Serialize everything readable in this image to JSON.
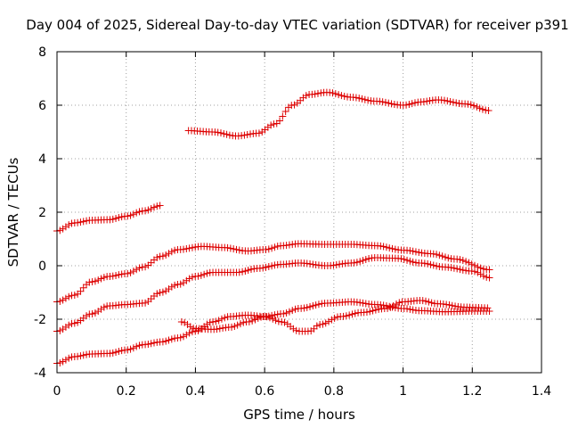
{
  "chart_data": {
    "type": "scatter",
    "title": "Day 004 of 2025, Sidereal Day-to-day VTEC variation (SDTVAR) for receiver p391",
    "xlabel": "GPS time / hours",
    "ylabel": "SDTVAR / TECUs",
    "xlim": [
      0,
      1.4
    ],
    "ylim": [
      -4,
      8
    ],
    "xticks": [
      0,
      0.2,
      0.4,
      0.6,
      0.8,
      1,
      1.2,
      1.4
    ],
    "xtick_labels": [
      "0",
      "0.2",
      "0.4",
      "0.6",
      "0.8",
      "1",
      "1.2",
      "1.4"
    ],
    "yticks": [
      -4,
      -2,
      0,
      2,
      4,
      6,
      8
    ],
    "ytick_labels": [
      "-4",
      "-2",
      "0",
      "2",
      "4",
      "6",
      "8"
    ],
    "grid": true,
    "marker": "plus",
    "color": "#dd0000",
    "series": [
      {
        "name": "s1",
        "knots": [
          [
            0.0,
            1.3
          ],
          [
            0.05,
            1.6
          ],
          [
            0.1,
            1.7
          ],
          [
            0.15,
            1.72
          ],
          [
            0.2,
            1.85
          ],
          [
            0.25,
            2.05
          ],
          [
            0.3,
            2.25
          ]
        ]
      },
      {
        "name": "s2",
        "knots": [
          [
            0.38,
            5.05
          ],
          [
            0.45,
            5.0
          ],
          [
            0.52,
            4.85
          ],
          [
            0.58,
            4.95
          ],
          [
            0.63,
            5.3
          ],
          [
            0.68,
            6.0
          ],
          [
            0.73,
            6.4
          ],
          [
            0.78,
            6.48
          ],
          [
            0.85,
            6.3
          ],
          [
            0.92,
            6.15
          ],
          [
            1.0,
            6.0
          ],
          [
            1.05,
            6.12
          ],
          [
            1.1,
            6.2
          ],
          [
            1.18,
            6.05
          ],
          [
            1.25,
            5.8
          ]
        ]
      },
      {
        "name": "s3",
        "knots": [
          [
            0.0,
            -1.35
          ],
          [
            0.05,
            -1.1
          ],
          [
            0.1,
            -0.6
          ],
          [
            0.15,
            -0.4
          ],
          [
            0.2,
            -0.3
          ],
          [
            0.25,
            -0.05
          ],
          [
            0.3,
            0.35
          ],
          [
            0.35,
            0.6
          ],
          [
            0.42,
            0.72
          ],
          [
            0.48,
            0.68
          ],
          [
            0.55,
            0.55
          ],
          [
            0.6,
            0.6
          ],
          [
            0.65,
            0.75
          ],
          [
            0.7,
            0.82
          ],
          [
            0.78,
            0.8
          ],
          [
            0.85,
            0.8
          ],
          [
            0.92,
            0.75
          ],
          [
            1.0,
            0.58
          ],
          [
            1.08,
            0.45
          ],
          [
            1.15,
            0.25
          ],
          [
            1.25,
            -0.15
          ]
        ]
      },
      {
        "name": "s4",
        "knots": [
          [
            0.0,
            -2.45
          ],
          [
            0.05,
            -2.15
          ],
          [
            0.1,
            -1.8
          ],
          [
            0.15,
            -1.5
          ],
          [
            0.2,
            -1.45
          ],
          [
            0.25,
            -1.4
          ],
          [
            0.3,
            -1.0
          ],
          [
            0.35,
            -0.7
          ],
          [
            0.4,
            -0.4
          ],
          [
            0.45,
            -0.25
          ],
          [
            0.52,
            -0.25
          ],
          [
            0.58,
            -0.1
          ],
          [
            0.65,
            0.05
          ],
          [
            0.7,
            0.1
          ],
          [
            0.78,
            0.0
          ],
          [
            0.85,
            0.1
          ],
          [
            0.92,
            0.3
          ],
          [
            0.98,
            0.28
          ],
          [
            1.05,
            0.1
          ],
          [
            1.12,
            -0.05
          ],
          [
            1.2,
            -0.2
          ],
          [
            1.25,
            -0.45
          ]
        ]
      },
      {
        "name": "s5",
        "knots": [
          [
            0.0,
            -3.65
          ],
          [
            0.05,
            -3.4
          ],
          [
            0.1,
            -3.3
          ],
          [
            0.15,
            -3.28
          ],
          [
            0.2,
            -3.15
          ],
          [
            0.25,
            -2.95
          ],
          [
            0.3,
            -2.85
          ],
          [
            0.35,
            -2.7
          ],
          [
            0.4,
            -2.45
          ],
          [
            0.45,
            -2.1
          ],
          [
            0.5,
            -1.9
          ],
          [
            0.55,
            -1.85
          ],
          [
            0.6,
            -1.9
          ],
          [
            0.65,
            -1.8
          ],
          [
            0.7,
            -1.6
          ],
          [
            0.78,
            -1.4
          ],
          [
            0.85,
            -1.35
          ],
          [
            0.92,
            -1.45
          ],
          [
            1.0,
            -1.6
          ],
          [
            1.05,
            -1.68
          ],
          [
            1.12,
            -1.72
          ],
          [
            1.2,
            -1.7
          ],
          [
            1.25,
            -1.7
          ]
        ]
      },
      {
        "name": "s6",
        "knots": [
          [
            0.36,
            -2.1
          ],
          [
            0.4,
            -2.35
          ],
          [
            0.45,
            -2.38
          ],
          [
            0.5,
            -2.3
          ],
          [
            0.55,
            -2.1
          ],
          [
            0.6,
            -1.9
          ],
          [
            0.65,
            -2.1
          ],
          [
            0.7,
            -2.45
          ],
          [
            0.73,
            -2.45
          ],
          [
            0.76,
            -2.2
          ],
          [
            0.82,
            -1.9
          ],
          [
            0.88,
            -1.75
          ],
          [
            0.95,
            -1.6
          ],
          [
            1.0,
            -1.35
          ],
          [
            1.05,
            -1.3
          ],
          [
            1.1,
            -1.42
          ],
          [
            1.18,
            -1.55
          ],
          [
            1.25,
            -1.58
          ]
        ]
      }
    ]
  }
}
